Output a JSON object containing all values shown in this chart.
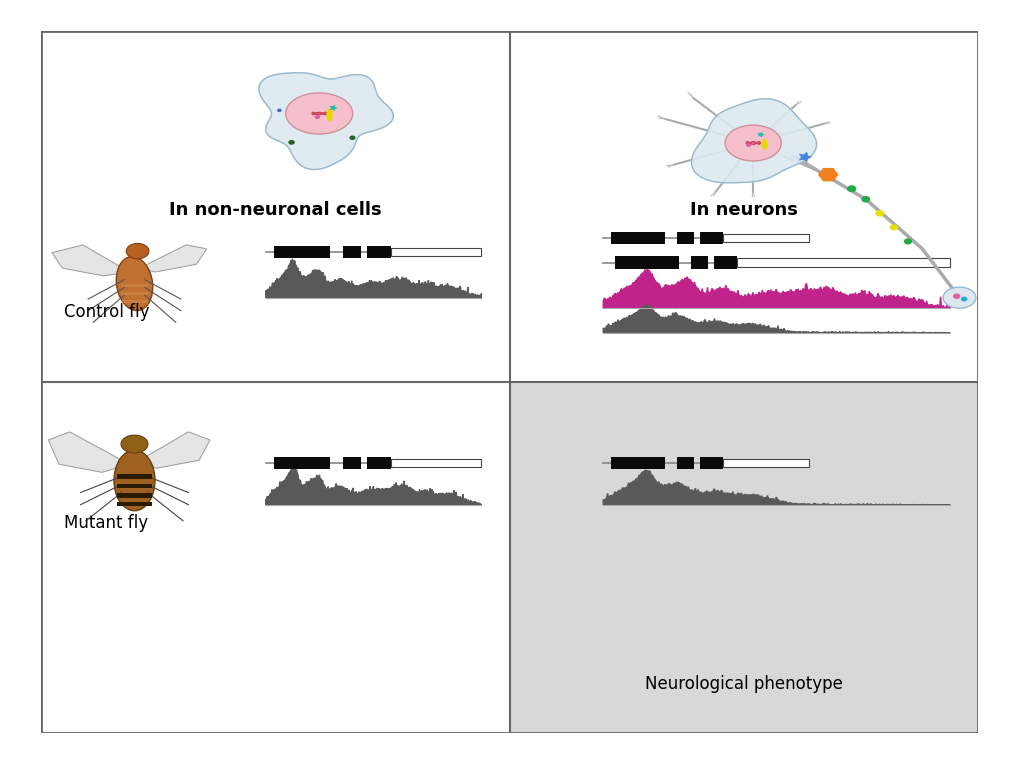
{
  "bg_color": "#ffffff",
  "grid_bg": "#d8d8d8",
  "border_color": "#666666",
  "panel_titles": [
    "In non-neuronal cells",
    "In neurons"
  ],
  "panel_title_fontsize": 13,
  "labels": [
    "Control fly",
    "Mutant fly",
    "Neurological phenotype"
  ],
  "label_fontsize": 12,
  "track_colors": {
    "gray": "#595959",
    "magenta": "#c0238a"
  },
  "exon_color": "#0a0a0a",
  "utr_box_color": "#ffffff",
  "utr_box_edge": "#444444",
  "cell_body_color": "#d8e8f0",
  "cell_edge_color": "#aaaaaa",
  "nucleus_color": "#f0b8c0",
  "nucleus_edge": "#cc9090"
}
